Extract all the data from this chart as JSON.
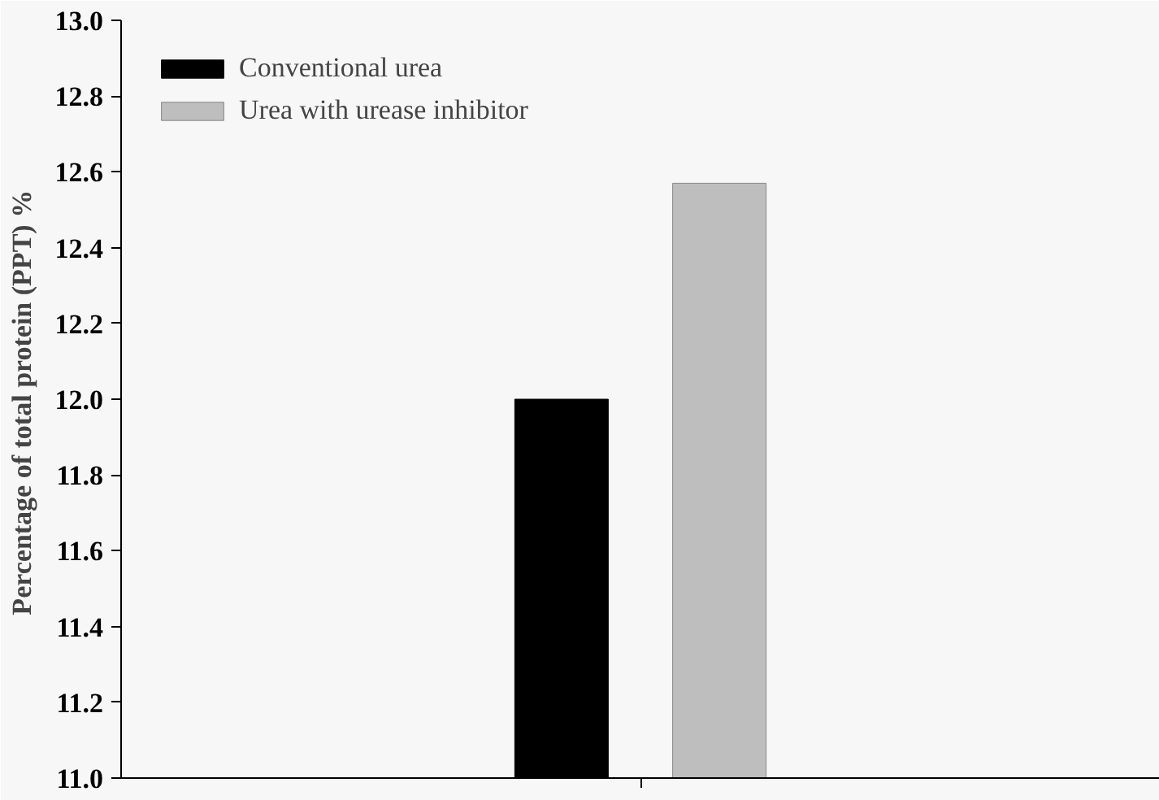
{
  "chart_data": {
    "type": "bar",
    "ylabel": "Percentage of total protein (PPT)  %",
    "categories": [
      null
    ],
    "series": [
      {
        "name": "Conventional urea",
        "color": "#000000",
        "values": [
          12.0
        ]
      },
      {
        "name": "Urea with urease inhibitor",
        "color": "#bebebe",
        "values": [
          12.57
        ]
      }
    ],
    "ylim": [
      11.0,
      13.0
    ],
    "yticks": [
      {
        "value": 11.0,
        "label": "11.0"
      },
      {
        "value": 11.2,
        "label": "11.2"
      },
      {
        "value": 11.4,
        "label": "11.4"
      },
      {
        "value": 11.6,
        "label": "11.6"
      },
      {
        "value": 11.8,
        "label": "11.8"
      },
      {
        "value": 12.0,
        "label": "12.0"
      },
      {
        "value": 12.2,
        "label": "12.2"
      },
      {
        "value": 12.4,
        "label": "12.4"
      },
      {
        "value": 12.6,
        "label": "12.6"
      },
      {
        "value": 12.8,
        "label": "12.8"
      },
      {
        "value": 13.0,
        "label": "13.0"
      }
    ],
    "grid": false,
    "legend": "top left"
  }
}
